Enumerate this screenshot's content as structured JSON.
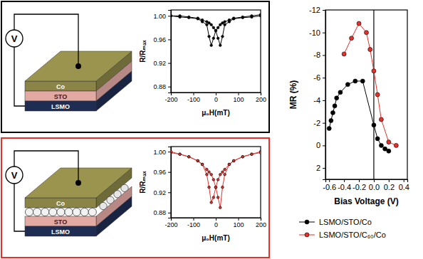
{
  "chart_data": [
    {
      "type": "line",
      "x_label": "μ₀H(mT)",
      "y_label": "R/Rₘₐₓ",
      "x": [
        -200,
        -160,
        -120,
        -80,
        -60,
        -40,
        -30,
        -20,
        -10,
        0,
        10,
        20,
        30,
        40,
        60,
        80,
        120,
        160,
        200
      ],
      "series": [
        {
          "color": "#000000",
          "marker": "circle",
          "line_style": "solid",
          "values": [
            1.0,
            0.998,
            0.997,
            0.995,
            0.99,
            0.985,
            0.965,
            0.95,
            0.962,
            0.975,
            0.98,
            0.985,
            0.988,
            0.99,
            0.993,
            0.996,
            0.998,
            1.0,
            1.002
          ]
        },
        {
          "color": "#000000",
          "marker": "circle",
          "line_style": "solid",
          "values": [
            1.0,
            1.0,
            0.998,
            0.996,
            0.993,
            0.99,
            0.988,
            0.985,
            0.98,
            0.975,
            0.962,
            0.95,
            0.965,
            0.985,
            0.99,
            0.995,
            0.997,
            0.998,
            1.0
          ]
        }
      ],
      "xlim": [
        -200,
        200
      ],
      "xticks": [
        -200,
        -100,
        0,
        100,
        200
      ],
      "ylim": [
        0.87,
        1.01
      ],
      "yticks": [
        0.88,
        0.92,
        0.96,
        {
          "value": 1,
          "label": "1.00"
        }
      ]
    },
    {
      "type": "line",
      "x_label": "μ₀H(mT)",
      "y_label": "R/Rₘₐₓ",
      "x": [
        -200,
        -160,
        -120,
        -80,
        -60,
        -40,
        -30,
        -20,
        -10,
        0,
        10,
        20,
        30,
        40,
        60,
        80,
        120,
        160,
        200
      ],
      "series": [
        {
          "color": "#e8302a",
          "marker": "circle",
          "line_style": "solid",
          "values": [
            0.998,
            0.995,
            0.99,
            0.982,
            0.975,
            0.955,
            0.93,
            0.9,
            0.91,
            0.93,
            0.945,
            0.955,
            0.96,
            0.965,
            0.975,
            0.982,
            0.99,
            0.995,
            1.0
          ]
        },
        {
          "color": "#e8302a",
          "marker": "circle",
          "line_style": "solid",
          "values": [
            1.0,
            0.995,
            0.99,
            0.982,
            0.975,
            0.965,
            0.96,
            0.955,
            0.945,
            0.93,
            0.91,
            0.89,
            0.93,
            0.955,
            0.975,
            0.982,
            0.99,
            0.995,
            0.998
          ]
        }
      ],
      "xlim": [
        -200,
        200
      ],
      "xticks": [
        -200,
        -100,
        0,
        100,
        200
      ],
      "ylim": [
        0.87,
        1.01
      ],
      "yticks": [
        0.88,
        0.92,
        0.96,
        {
          "value": 1,
          "label": "1.00"
        }
      ]
    },
    {
      "type": "line",
      "x_label": "Bias Voltage (V)",
      "y_label": "MR (%)",
      "legend": "bottom",
      "series": [
        {
          "name": "LSMO/STO/Co",
          "color": "#000000",
          "marker": "circle",
          "line_style": "solid",
          "x": [
            -0.6,
            -0.575,
            -0.55,
            -0.525,
            -0.5,
            -0.45,
            -0.35,
            -0.25,
            -0.15,
            0,
            0.05,
            0.1,
            0.15,
            0.2
          ],
          "values": [
            -1.5,
            -2.2,
            -2.9,
            -3.5,
            -4.2,
            -4.7,
            -5.4,
            -5.7,
            -5.7,
            -1.8,
            -0.6,
            0,
            0.3,
            0.5
          ]
        },
        {
          "name": "LSMO/STO/C₆₀/Co",
          "color": "#e8302a",
          "marker": "circle",
          "line_style": "solid",
          "x": [
            -0.4,
            -0.3,
            -0.2,
            -0.1,
            -0.05,
            0,
            0.05,
            0.1,
            0.2,
            0.3
          ],
          "values": [
            -8.1,
            -9.5,
            -10.8,
            -10.0,
            -8.5,
            -6.6,
            -4.5,
            -2.3,
            -0.3,
            0.0
          ]
        }
      ],
      "xlim": [
        -0.65,
        0.45
      ],
      "xticks": [
        -0.6,
        -0.4,
        -0.2,
        {
          "value": 0,
          "label": "0.0"
        },
        0.2,
        0.4
      ],
      "ylim": [
        3,
        -12
      ],
      "yticks": [
        -12,
        -10,
        -8,
        -6,
        -4,
        -2,
        0,
        2
      ]
    }
  ],
  "diagrams": [
    {
      "meter": "V",
      "layers": [
        "Co",
        "STO",
        "LSMO"
      ],
      "molecules": false
    },
    {
      "meter": "V",
      "layers": [
        "Co",
        "STO",
        "LSMO"
      ],
      "molecules": true
    }
  ]
}
